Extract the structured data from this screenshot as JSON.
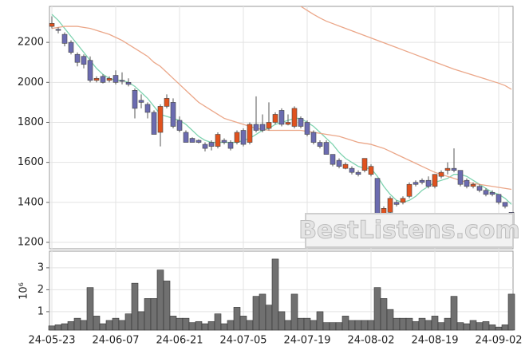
{
  "chart_data": [
    {
      "type": "candlestick",
      "categories": [
        "24-05-23",
        null,
        null,
        null,
        null,
        null,
        null,
        null,
        null,
        null,
        "24-06-07",
        null,
        null,
        null,
        null,
        null,
        null,
        null,
        null,
        null,
        "24-06-21",
        null,
        null,
        null,
        null,
        null,
        null,
        null,
        null,
        null,
        "24-07-05",
        null,
        null,
        null,
        null,
        null,
        null,
        null,
        null,
        null,
        "24-07-19",
        null,
        null,
        null,
        null,
        null,
        null,
        null,
        null,
        null,
        "24-08-02",
        null,
        null,
        null,
        null,
        null,
        null,
        null,
        null,
        null,
        "24-08-19",
        null,
        null,
        null,
        null,
        null,
        null,
        null,
        null,
        null,
        "24-09-02",
        null,
        null
      ],
      "open": [
        2280,
        2265,
        2240,
        2200,
        2140,
        2130,
        2110,
        2010,
        2030,
        2010,
        2035,
        2010,
        2000,
        1960,
        1910,
        1890,
        1850,
        1750,
        1880,
        1900,
        1810,
        1750,
        1720,
        1710,
        1690,
        1700,
        1680,
        1710,
        1700,
        1700,
        1760,
        1700,
        1790,
        1790,
        1770,
        1800,
        1860,
        1790,
        1780,
        1820,
        1800,
        1750,
        1700,
        1700,
        1640,
        1610,
        1570,
        1570,
        1550,
        1560,
        1540,
        1520,
        1280,
        1350,
        1400,
        1400,
        1430,
        1500,
        1510,
        1510,
        1480,
        1530,
        1560,
        1570,
        1560,
        1510,
        1480,
        1480,
        1460,
        1450,
        1440,
        1400,
        1350
      ],
      "high": [
        2330,
        2275,
        2250,
        2210,
        2150,
        2140,
        2130,
        2030,
        2040,
        2030,
        2060,
        2050,
        2020,
        1970,
        1940,
        1900,
        1860,
        1890,
        1940,
        1920,
        1830,
        1760,
        1725,
        1715,
        1700,
        1710,
        1750,
        1720,
        1710,
        1760,
        1770,
        1800,
        1930,
        1840,
        1900,
        1850,
        1870,
        1840,
        1880,
        1830,
        1810,
        1760,
        1710,
        1710,
        1640,
        1620,
        1600,
        1580,
        1560,
        1620,
        1590,
        1520,
        1380,
        1430,
        1410,
        1430,
        1500,
        1510,
        1520,
        1530,
        1540,
        1560,
        1600,
        1670,
        1560,
        1520,
        1500,
        1490,
        1470,
        1460,
        1440,
        1400,
        1350
      ],
      "low": [
        2270,
        2245,
        2180,
        2140,
        2080,
        2070,
        2000,
        2000,
        1995,
        2000,
        1990,
        1990,
        1980,
        1820,
        1870,
        1820,
        1740,
        1680,
        1870,
        1770,
        1750,
        1700,
        1700,
        1695,
        1655,
        1660,
        1670,
        1690,
        1660,
        1690,
        1680,
        1690,
        1750,
        1750,
        1760,
        1790,
        1780,
        1785,
        1770,
        1770,
        1730,
        1690,
        1670,
        1640,
        1580,
        1570,
        1565,
        1540,
        1530,
        1550,
        1530,
        1240,
        1270,
        1320,
        1380,
        1390,
        1420,
        1480,
        1490,
        1470,
        1470,
        1520,
        1540,
        1550,
        1480,
        1470,
        1470,
        1450,
        1430,
        1430,
        1390,
        1370,
        1250
      ],
      "close": [
        2295,
        2260,
        2195,
        2150,
        2100,
        2090,
        2010,
        2020,
        2000,
        2020,
        2000,
        2005,
        1990,
        1870,
        1900,
        1850,
        1740,
        1880,
        1920,
        1780,
        1760,
        1700,
        1700,
        1700,
        1670,
        1680,
        1740,
        1700,
        1670,
        1750,
        1690,
        1790,
        1760,
        1760,
        1800,
        1840,
        1790,
        1800,
        1870,
        1780,
        1740,
        1700,
        1680,
        1640,
        1590,
        1580,
        1590,
        1550,
        1540,
        1620,
        1580,
        1340,
        1370,
        1420,
        1390,
        1420,
        1490,
        1490,
        1500,
        1480,
        1540,
        1550,
        1570,
        1560,
        1490,
        1480,
        1490,
        1460,
        1440,
        1440,
        1400,
        1380,
        1260
      ],
      "up_color": "#e0521e",
      "down_color": "#6b6bb0",
      "series": [
        {
          "color": "#7fd3b0",
          "values": [
            2340,
            2310,
            2270,
            2230,
            2190,
            2150,
            2110,
            2070,
            2040,
            2020,
            2010,
            2010,
            2000,
            1980,
            1950,
            1920,
            1880,
            1840,
            1830,
            1820,
            1810,
            1790,
            1760,
            1730,
            1710,
            1700,
            1700,
            1700,
            1700,
            1700,
            1710,
            1720,
            1740,
            1760,
            1770,
            1790,
            1800,
            1810,
            1820,
            1820,
            1800,
            1780,
            1750,
            1720,
            1690,
            1650,
            1620,
            1600,
            1580,
            1570,
            1570,
            1530,
            1480,
            1440,
            1410,
            1400,
            1410,
            1430,
            1460,
            1480,
            1500,
            1510,
            1520,
            1540,
            1540,
            1530,
            1510,
            1490,
            1470,
            1450,
            1440,
            1420,
            1390
          ]
        },
        {
          "color": "#eba789",
          "values": [
            2270,
            2275,
            2280,
            2280,
            2280,
            2275,
            2270,
            2260,
            2250,
            2240,
            2225,
            2210,
            2190,
            2170,
            2150,
            2130,
            2100,
            2080,
            2050,
            2020,
            1990,
            1960,
            1930,
            1900,
            1880,
            1860,
            1840,
            1820,
            1810,
            1800,
            1790,
            1780,
            1770,
            1765,
            1760,
            1760,
            1760,
            1760,
            1760,
            1760,
            1755,
            1750,
            1745,
            1740,
            1735,
            1730,
            1720,
            1710,
            1700,
            1695,
            1690,
            1680,
            1670,
            1655,
            1640,
            1625,
            1610,
            1595,
            1580,
            1565,
            1550,
            1540,
            1530,
            1520,
            1510,
            1500,
            1495,
            1490,
            1485,
            1480,
            1475,
            1470,
            1465
          ]
        },
        {
          "color": "#eba789",
          "values": [
            null,
            null,
            null,
            null,
            null,
            null,
            null,
            null,
            null,
            null,
            null,
            null,
            null,
            null,
            null,
            null,
            null,
            null,
            null,
            null,
            null,
            null,
            null,
            null,
            null,
            null,
            null,
            null,
            null,
            null,
            null,
            null,
            null,
            null,
            null,
            null,
            null,
            null,
            null,
            2380,
            2360,
            2340,
            2322,
            2306,
            2294,
            2282,
            2270,
            2258,
            2246,
            2234,
            2222,
            2210,
            2198,
            2186,
            2174,
            2162,
            2150,
            2138,
            2126,
            2114,
            2102,
            2090,
            2078,
            2066,
            2056,
            2046,
            2036,
            2026,
            2016,
            2006,
            1996,
            1984,
            1965
          ]
        }
      ],
      "ylim": [
        1168,
        2380
      ],
      "yticks": [
        1200,
        1400,
        1600,
        1800,
        2000,
        2200
      ],
      "grid": true,
      "annotation": "BestListens.com"
    },
    {
      "type": "bar",
      "ylabel": "10⁶",
      "color": "#707070",
      "values": [
        0.35,
        0.4,
        0.45,
        0.55,
        0.7,
        0.6,
        2.1,
        0.8,
        0.45,
        0.6,
        0.7,
        0.6,
        0.9,
        2.3,
        1.0,
        1.6,
        1.6,
        2.9,
        2.4,
        0.8,
        0.7,
        0.7,
        0.5,
        0.55,
        0.45,
        0.55,
        0.9,
        0.45,
        0.6,
        1.2,
        0.8,
        0.6,
        1.7,
        1.8,
        1.3,
        3.4,
        1.0,
        0.6,
        1.8,
        0.7,
        0.7,
        0.6,
        1.0,
        0.5,
        0.5,
        0.5,
        0.8,
        0.6,
        0.6,
        0.6,
        0.6,
        2.1,
        1.6,
        1.1,
        0.7,
        0.7,
        0.7,
        0.55,
        0.7,
        0.6,
        0.8,
        0.5,
        0.7,
        1.7,
        0.5,
        0.45,
        0.6,
        0.5,
        0.55,
        0.4,
        0.3,
        0.4,
        1.8
      ],
      "ylim": [
        0.16,
        3.76
      ],
      "yticks": [
        1,
        2,
        3
      ],
      "grid": true
    }
  ]
}
